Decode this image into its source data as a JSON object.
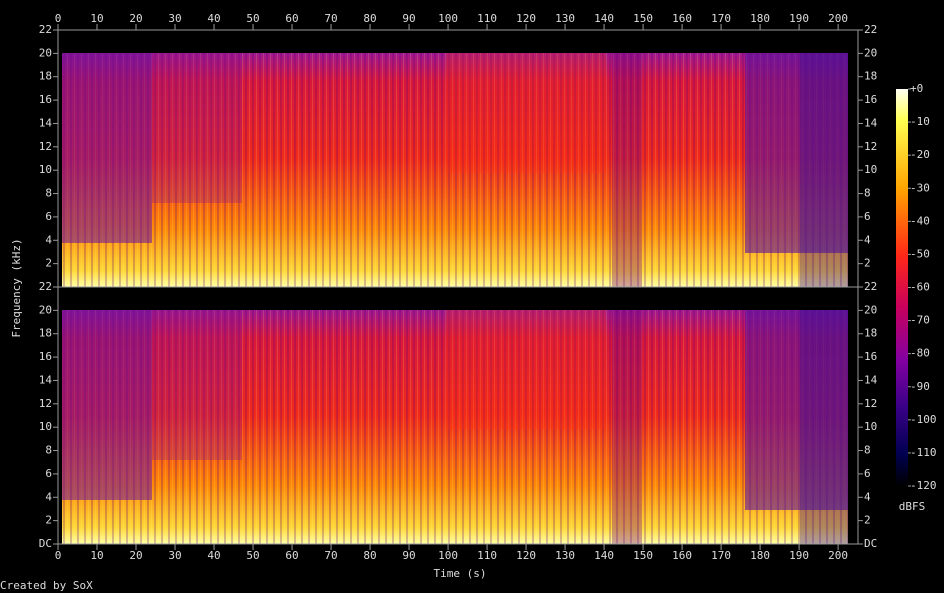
{
  "chart_data": {
    "type": "spectrogram",
    "xlabel": "Time (s)",
    "ylabel": "Frequency (kHz)",
    "credit": "Created by SoX",
    "xlim": [
      0,
      205.1
    ],
    "xticks": [
      0,
      10,
      20,
      30,
      40,
      50,
      60,
      70,
      80,
      90,
      100,
      110,
      120,
      130,
      140,
      150,
      160,
      170,
      180,
      190,
      200
    ],
    "channels": [
      {
        "ylim": [
          0,
          22
        ],
        "yticks": [
          2,
          4,
          6,
          8,
          10,
          12,
          14,
          16,
          18,
          20,
          22
        ]
      },
      {
        "ylim": [
          0,
          22
        ],
        "yticks": [
          {
            "value": 0,
            "label": "DC"
          },
          2,
          4,
          6,
          8,
          10,
          12,
          14,
          16,
          18,
          20,
          22
        ]
      }
    ],
    "colorbar": {
      "label": "dBFS",
      "lim": [
        -120,
        0
      ],
      "ticks": [
        {
          "value": 0,
          "label": "+0"
        },
        -10,
        -20,
        -30,
        -40,
        -50,
        -60,
        -70,
        -80,
        -90,
        -100,
        -110,
        -120
      ]
    }
  }
}
